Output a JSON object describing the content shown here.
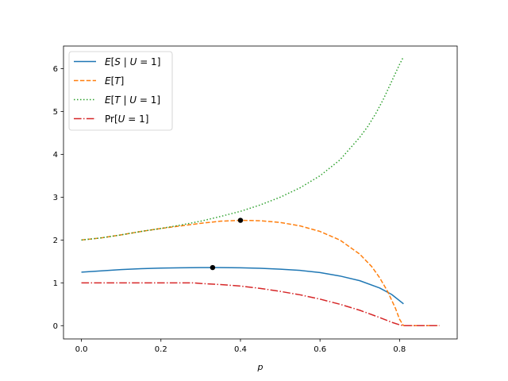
{
  "chart_data": {
    "type": "line",
    "title": "",
    "xlabel": "p",
    "ylabel": "",
    "xlim": [
      -0.045,
      0.945
    ],
    "ylim": [
      -0.31,
      6.53
    ],
    "xticks": [
      0.0,
      0.2,
      0.4,
      0.6,
      0.8
    ],
    "xtick_labels": [
      "0.0",
      "0.2",
      "0.4",
      "0.6",
      "0.8"
    ],
    "yticks": [
      0,
      1,
      2,
      3,
      4,
      5,
      6
    ],
    "ytick_labels": [
      "0",
      "1",
      "2",
      "3",
      "4",
      "5",
      "6"
    ],
    "grid": false,
    "legend_position": "upper-left",
    "series": [
      {
        "name": "E[S | U = 1]",
        "style": "solid",
        "color": "#1f77b4",
        "x": [
          0.0,
          0.05,
          0.1,
          0.15,
          0.2,
          0.25,
          0.3,
          0.33,
          0.35,
          0.4,
          0.45,
          0.5,
          0.55,
          0.6,
          0.65,
          0.7,
          0.75,
          0.78,
          0.81
        ],
        "y": [
          1.25,
          1.28,
          1.31,
          1.33,
          1.345,
          1.352,
          1.356,
          1.357,
          1.356,
          1.352,
          1.34,
          1.32,
          1.29,
          1.24,
          1.16,
          1.05,
          0.88,
          0.73,
          0.51
        ]
      },
      {
        "name": "E[T]",
        "style": "dashed",
        "color": "#ff7f0e",
        "x": [
          0.0,
          0.05,
          0.1,
          0.15,
          0.2,
          0.25,
          0.3,
          0.35,
          0.4,
          0.45,
          0.5,
          0.55,
          0.6,
          0.65,
          0.7,
          0.73,
          0.75,
          0.77,
          0.79,
          0.8,
          0.81,
          0.85,
          0.9
        ],
        "y": [
          2.0,
          2.05,
          2.12,
          2.2,
          2.27,
          2.33,
          2.39,
          2.44,
          2.46,
          2.45,
          2.41,
          2.33,
          2.2,
          2.0,
          1.67,
          1.38,
          1.12,
          0.8,
          0.4,
          0.15,
          0.0,
          0.0,
          0.0
        ]
      },
      {
        "name": "E[T | U = 1]",
        "style": "dotted",
        "color": "#2ca02c",
        "x": [
          0.0,
          0.05,
          0.1,
          0.15,
          0.2,
          0.25,
          0.3,
          0.35,
          0.4,
          0.45,
          0.5,
          0.55,
          0.6,
          0.65,
          0.7,
          0.72,
          0.74,
          0.76,
          0.78,
          0.8,
          0.81
        ],
        "y": [
          2.0,
          2.05,
          2.12,
          2.2,
          2.27,
          2.35,
          2.44,
          2.55,
          2.67,
          2.82,
          3.0,
          3.22,
          3.5,
          3.87,
          4.4,
          4.65,
          4.95,
          5.3,
          5.7,
          6.1,
          6.28
        ]
      },
      {
        "name": "Pr[U = 1]",
        "style": "dashdot",
        "color": "#d62728",
        "x": [
          0.0,
          0.05,
          0.1,
          0.15,
          0.2,
          0.25,
          0.28,
          0.3,
          0.35,
          0.4,
          0.45,
          0.5,
          0.55,
          0.6,
          0.65,
          0.7,
          0.75,
          0.78,
          0.8,
          0.81,
          0.85,
          0.9
        ],
        "y": [
          1.0,
          1.0,
          1.0,
          1.0,
          1.0,
          1.0,
          1.0,
          0.985,
          0.96,
          0.925,
          0.87,
          0.8,
          0.72,
          0.62,
          0.5,
          0.36,
          0.19,
          0.08,
          0.02,
          0.0,
          0.0,
          0.0
        ]
      }
    ],
    "markers": [
      {
        "x": 0.33,
        "y": 1.357,
        "color": "#000000"
      },
      {
        "x": 0.4,
        "y": 2.46,
        "color": "#000000"
      }
    ]
  }
}
